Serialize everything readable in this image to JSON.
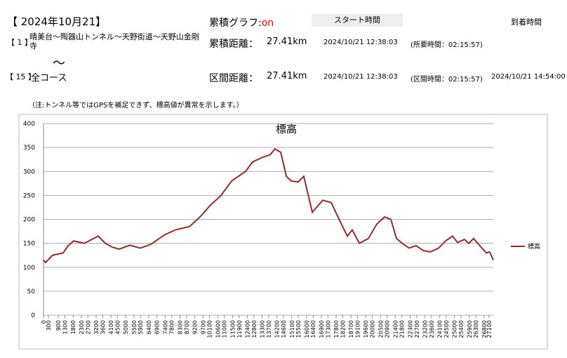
{
  "header": {
    "date": "【 2024年10月21】",
    "graph_label": "累積グラフ:",
    "graph_state": "on",
    "start_label": "スタート時間",
    "arrival_label": "到着時間",
    "row1": {
      "index": "【 1 】",
      "course": "晴美台～陶器山トンネル～天野街道～天野山金剛寺",
      "dist_label": "累積距離：",
      "dist": "27.41km",
      "start": "2024/10/21 12:38:03",
      "duration": "(所要時間：02:15:57)"
    },
    "tilde": "～",
    "row2": {
      "index": "【 15 】",
      "course": "全コース",
      "dist_label": "区間距離：",
      "dist": "27.41km",
      "start": "2024/10/21 12:38:03",
      "duration": "(区間時間：02:15:57)",
      "arrival": "2024/10/21 14:54:00"
    },
    "note": "（注:トンネル等ではGPSを補足できず、標高値が異常を示します。）"
  },
  "chart_data": {
    "type": "line",
    "title": "標高",
    "x": [
      0,
      130,
      550,
      1200,
      1500,
      1830,
      2480,
      3330,
      3760,
      4180,
      4610,
      5250,
      5890,
      6530,
      7380,
      8020,
      8880,
      9520,
      10160,
      10800,
      11440,
      12290,
      12720,
      13360,
      13790,
      14080,
      14430,
      14770,
      15070,
      15490,
      15830,
      16350,
      16990,
      17500,
      18050,
      18480,
      18780,
      19210,
      19760,
      20270,
      20740,
      21130,
      21470,
      21890,
      22240,
      22660,
      23090,
      23520,
      24030,
      24460,
      24880,
      25180,
      25610,
      25860,
      26160,
      26590,
      26930,
      27140,
      27360
    ],
    "series": [
      {
        "name": "標高",
        "color": "#8b2f2f",
        "values": [
          115,
          110,
          125,
          130,
          145,
          155,
          150,
          165,
          150,
          142,
          138,
          146,
          140,
          148,
          168,
          178,
          185,
          205,
          230,
          250,
          280,
          300,
          320,
          330,
          335,
          347,
          340,
          290,
          280,
          278,
          290,
          215,
          240,
          235,
          195,
          165,
          178,
          150,
          160,
          190,
          205,
          200,
          160,
          148,
          140,
          145,
          135,
          132,
          140,
          155,
          165,
          152,
          158,
          150,
          160,
          143,
          130,
          132,
          115
        ]
      }
    ],
    "xlim": [
      0,
      27360
    ],
    "ylim": [
      0,
      400
    ],
    "yticks": [
      0,
      50,
      100,
      150,
      200,
      250,
      300,
      350,
      400
    ],
    "xticks": [
      0,
      300,
      900,
      1300,
      1800,
      2300,
      2700,
      3200,
      3600,
      4100,
      4500,
      5000,
      5500,
      5900,
      6400,
      6900,
      7400,
      7800,
      8300,
      8700,
      9200,
      9700,
      10100,
      10600,
      11000,
      11500,
      11900,
      12400,
      12800,
      13300,
      13700,
      14200,
      14600,
      15100,
      15500,
      16000,
      16400,
      16900,
      17300,
      17800,
      18200,
      18700,
      19100,
      19600,
      20000,
      20500,
      20900,
      21400,
      21800,
      22300,
      22700,
      23200,
      23600,
      24100,
      24500,
      25000,
      25400,
      25900,
      26300,
      26800,
      27100
    ],
    "grid": true,
    "legend": "right"
  }
}
